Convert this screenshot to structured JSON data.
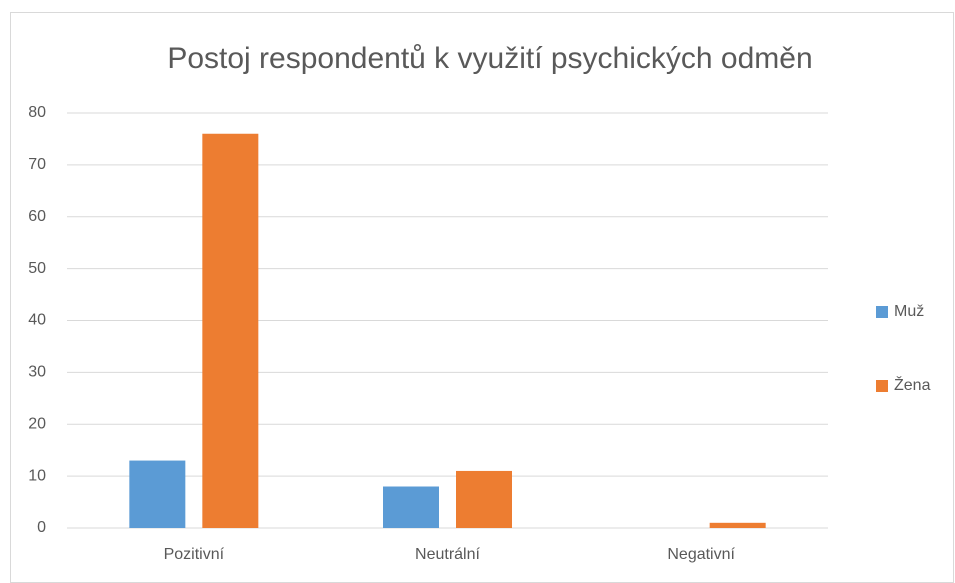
{
  "chart_data": {
    "type": "bar",
    "title": "Postoj respondentů k využití psychických odměn",
    "categories": [
      "Pozitivní",
      "Neutrální",
      "Negativní"
    ],
    "series": [
      {
        "name": "Muž",
        "color": "#5b9bd5",
        "values": [
          13,
          8,
          0
        ]
      },
      {
        "name": "Žena",
        "color": "#ed7d31",
        "values": [
          76,
          11,
          1
        ]
      }
    ],
    "ylim": [
      0,
      80
    ],
    "yticks": [
      0,
      10,
      20,
      30,
      40,
      50,
      60,
      70,
      80
    ],
    "grid": true,
    "legend": "right"
  }
}
